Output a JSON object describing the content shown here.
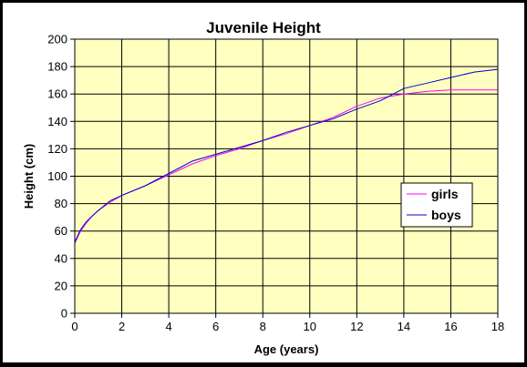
{
  "chart_data": {
    "type": "line",
    "title": "Juvenile Height",
    "xlabel": "Age (years)",
    "ylabel": "Height (cm)",
    "xlim": [
      0,
      18
    ],
    "ylim": [
      0,
      200
    ],
    "xticks": [
      0,
      2,
      4,
      6,
      8,
      10,
      12,
      14,
      16,
      18
    ],
    "yticks": [
      0,
      20,
      40,
      60,
      80,
      100,
      120,
      140,
      160,
      180,
      200
    ],
    "grid": true,
    "legend_position": "right",
    "plot_background": "#ffffc0",
    "series": [
      {
        "name": "girls",
        "color": "#ff00ff",
        "x": [
          0,
          0.25,
          0.5,
          0.75,
          1,
          1.5,
          2,
          3,
          4,
          5,
          6,
          7,
          8,
          9,
          10,
          11,
          12,
          13,
          14,
          15,
          16,
          17,
          18
        ],
        "y": [
          51,
          60,
          66,
          71,
          75,
          81,
          86,
          93,
          101,
          109,
          115,
          120,
          126,
          131,
          137,
          143,
          151,
          157,
          160,
          162,
          163,
          163,
          163
        ]
      },
      {
        "name": "boys",
        "color": "#0000cc",
        "x": [
          0,
          0.25,
          0.5,
          0.75,
          1,
          1.5,
          2,
          3,
          4,
          5,
          6,
          7,
          8,
          9,
          10,
          11,
          12,
          13,
          14,
          15,
          16,
          17,
          18
        ],
        "y": [
          52,
          61,
          67,
          71,
          75,
          82,
          86,
          93,
          102,
          111,
          116,
          121,
          126,
          132,
          137,
          142,
          149,
          155,
          164,
          168,
          172,
          176,
          178
        ]
      }
    ]
  }
}
